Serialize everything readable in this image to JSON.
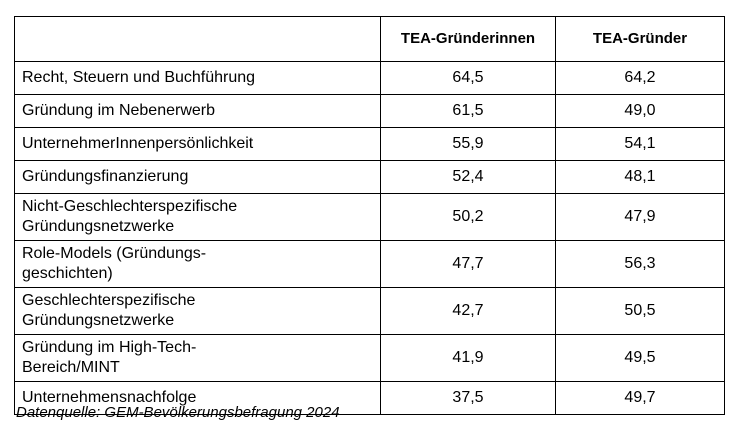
{
  "chart_data": {
    "type": "table",
    "columns": [
      "",
      "TEA-Gründerinnen",
      "TEA-Gründer"
    ],
    "categories": [
      "Recht, Steuern und Buchführung",
      "Gründung im Nebenerwerb",
      "UnternehmerInnenpersönlichkeit",
      "Gründungsfinanzierung",
      "Nicht-Geschlechterspezifische Gründungsnetzwerke",
      "Role-Models (Gründungsgeschichten)",
      "Geschlechterspezifische Gründungsnetzwerke",
      "Gründung im High-Tech-Bereich/MINT",
      "Unternehmensnachfolge"
    ],
    "series": [
      {
        "name": "TEA-Gründerinnen",
        "values": [
          64.5,
          61.5,
          55.9,
          52.4,
          50.2,
          47.7,
          42.7,
          41.9,
          37.5
        ]
      },
      {
        "name": "TEA-Gründer",
        "values": [
          64.2,
          49.0,
          54.1,
          48.1,
          47.9,
          56.3,
          50.5,
          49.5,
          49.7
        ]
      }
    ],
    "source": "Datenquelle: GEM-Bevölkerungsbefragung 2024"
  },
  "table": {
    "header": [
      "",
      "TEA-Gründerinnen",
      "TEA-Gründer"
    ],
    "rows": [
      {
        "label": "Recht, Steuern und Buchführung",
        "f": "64,5",
        "m": "64,2"
      },
      {
        "label": "Gründung im Nebenerwerb",
        "f": "61,5",
        "m": "49,0"
      },
      {
        "label": "UnternehmerInnenpersönlichkeit",
        "f": "55,9",
        "m": "54,1"
      },
      {
        "label": "Gründungsfinanzierung",
        "f": "52,4",
        "m": "48,1"
      },
      {
        "label": "Nicht-Geschlechterspezifische\nGründungsnetzwerke",
        "f": "50,2",
        "m": "47,9"
      },
      {
        "label": "Role-Models (Gründungs-\ngeschichten)",
        "f": "47,7",
        "m": "56,3"
      },
      {
        "label": "Geschlechterspezifische\nGründungsnetzwerke",
        "f": "42,7",
        "m": "50,5"
      },
      {
        "label": "Gründung im High-Tech-\nBereich/MINT",
        "f": "41,9",
        "m": "49,5"
      },
      {
        "label": "Unternehmensnachfolge",
        "f": "37,5",
        "m": "49,7"
      }
    ]
  },
  "footer": {
    "source": "Datenquelle: GEM-Bevölkerungsbefragung 2024"
  },
  "colors": {
    "border": "#000000",
    "text": "#000000",
    "background": "#ffffff"
  }
}
